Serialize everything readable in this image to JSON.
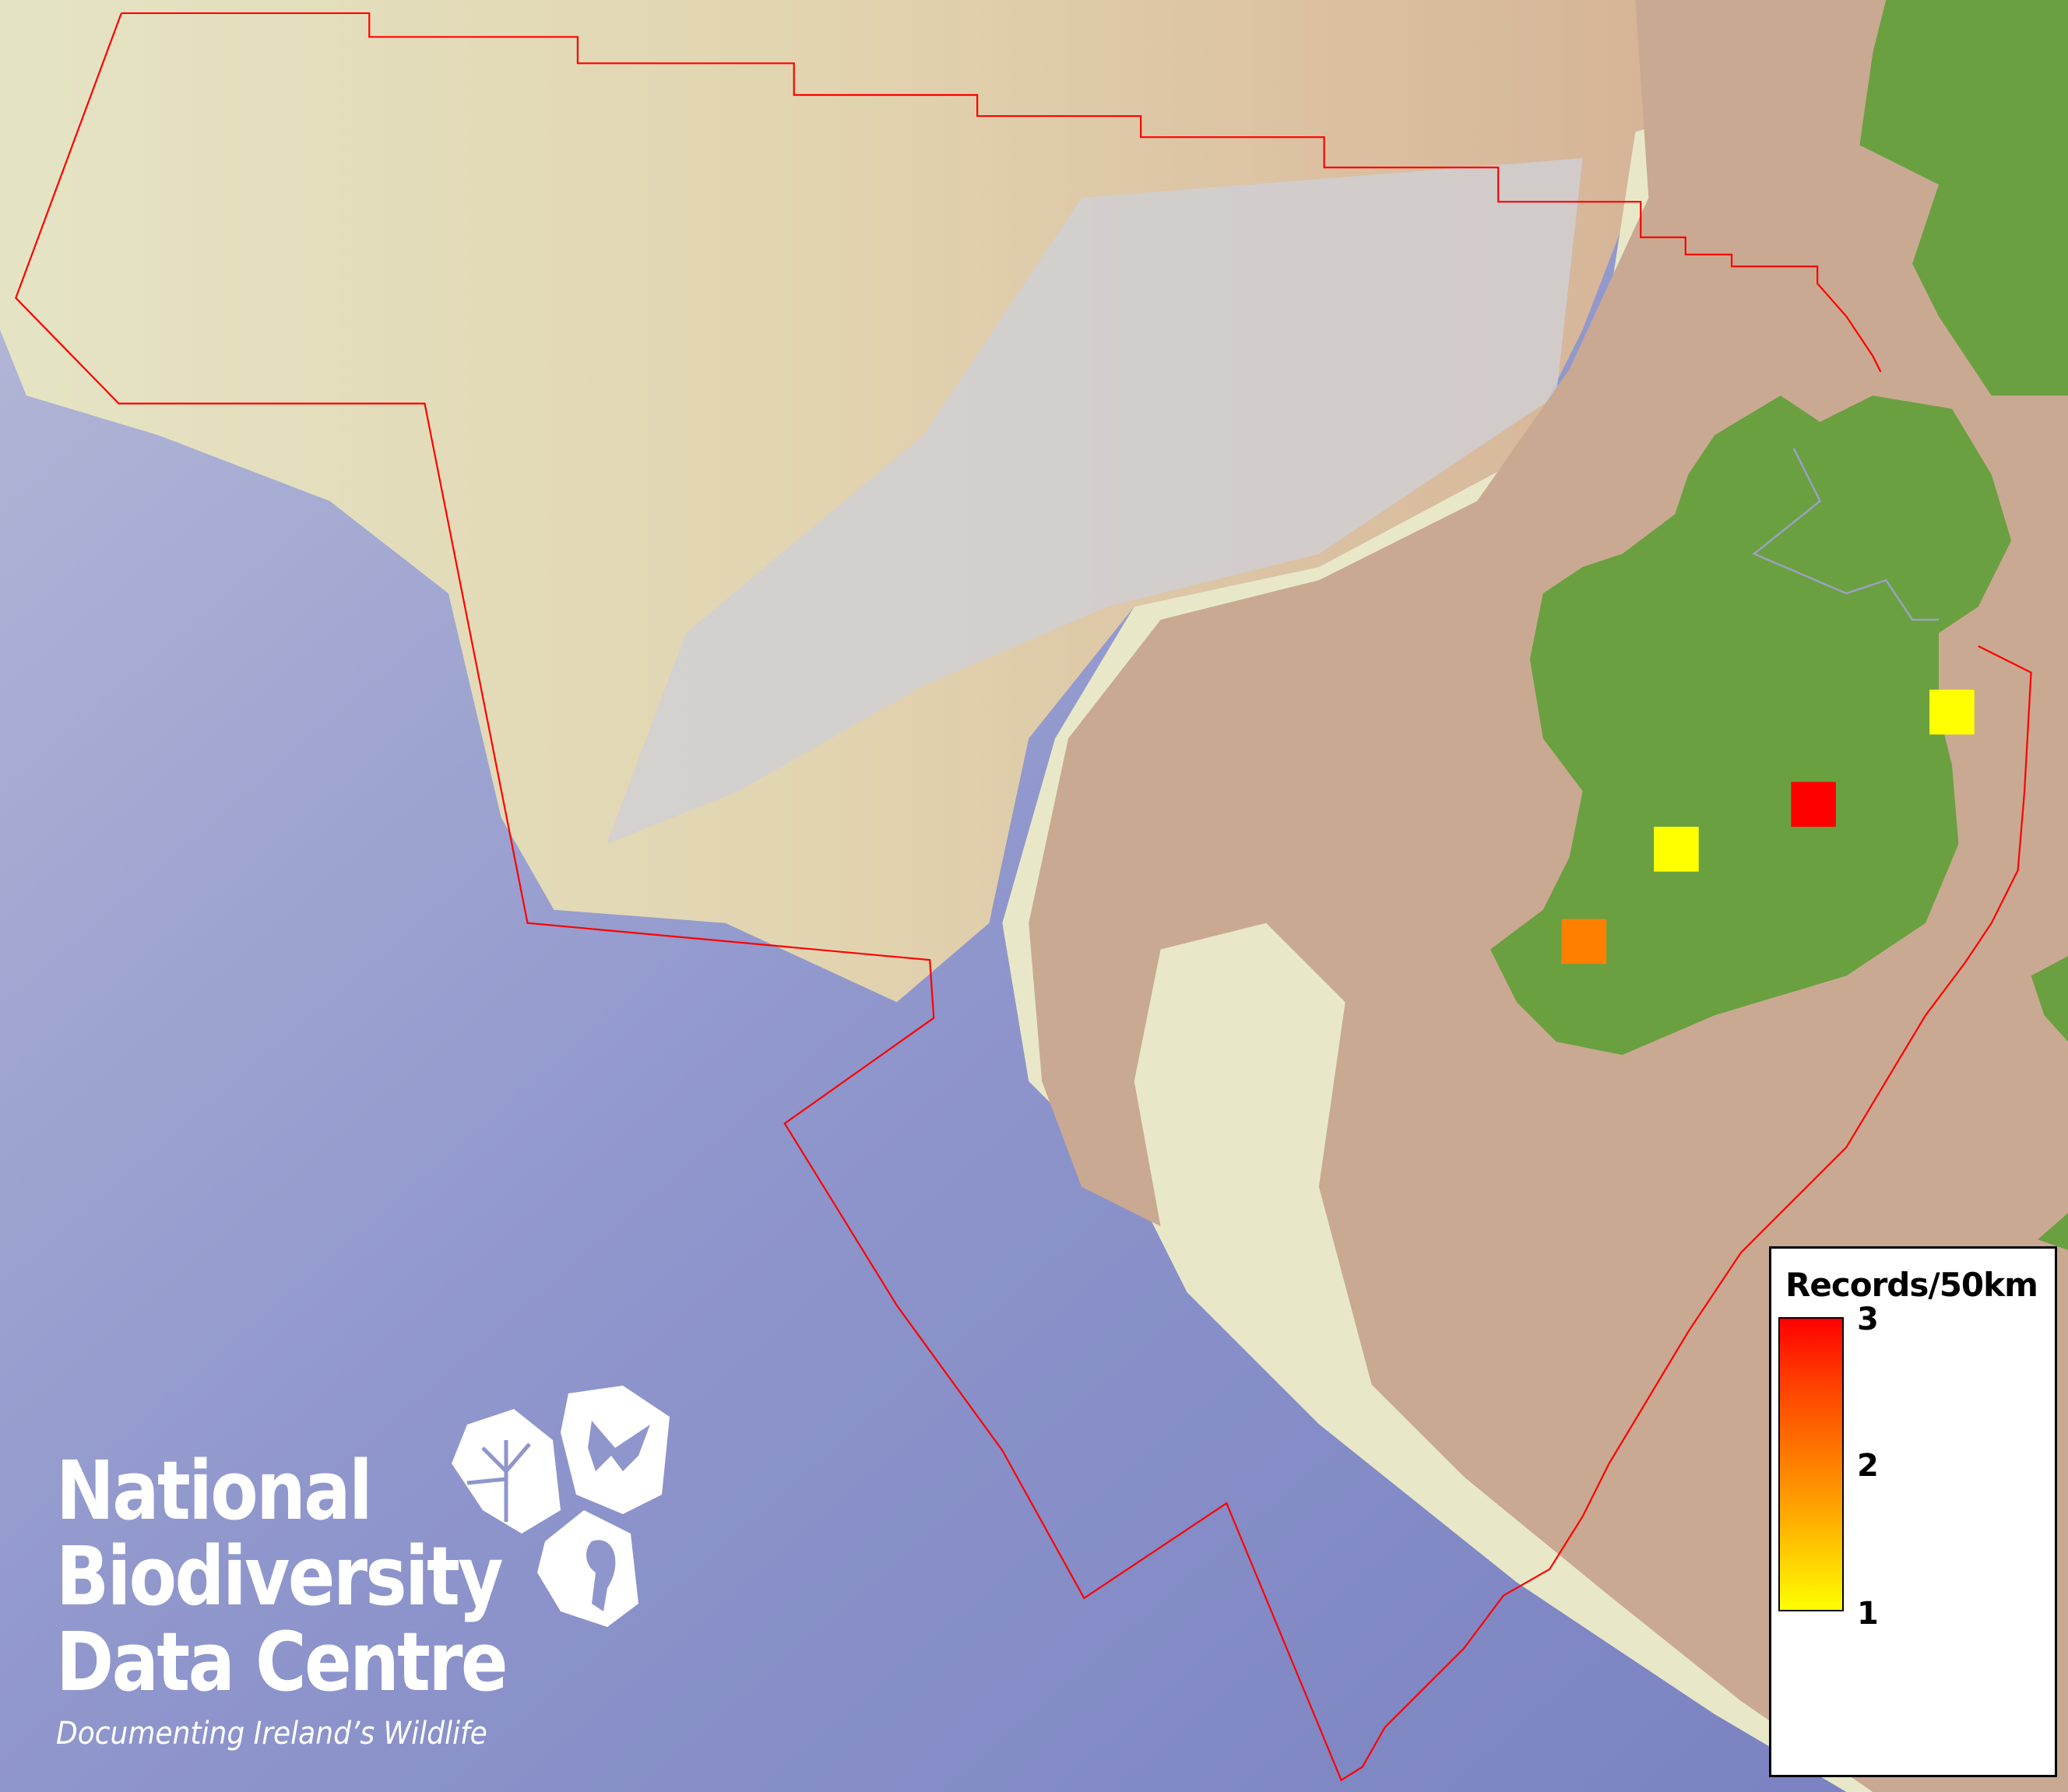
{
  "logo": {
    "lines": [
      "National",
      "Biodiversity",
      "Data Centre"
    ],
    "tagline": "Documenting Ireland’s Wildlife"
  },
  "legend": {
    "title": "Records/50km",
    "ticks": [
      "3",
      "2",
      "1"
    ],
    "min": 1,
    "max": 3,
    "color_low": "#ffff00",
    "color_mid": "#ff8000",
    "color_high": "#ff0000"
  },
  "records": [
    {
      "value": 1
    },
    {
      "value": 3
    },
    {
      "value": 1
    },
    {
      "value": 2
    }
  ],
  "colors": {
    "land": "#6aa040",
    "shelf": "#c8a890",
    "deep_ocean": "#7f86c4",
    "slope": "#e6e6c0",
    "boundary": "#ff0000"
  }
}
